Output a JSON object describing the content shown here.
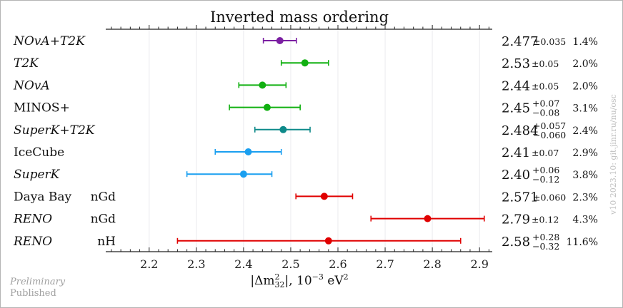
{
  "chart_data": {
    "type": "scatter",
    "subtype": "forest-plot-with-error-bars",
    "title": "Inverted mass ordering",
    "xlabel": "|Δm²₃₂|, 10⁻³ eV²",
    "xlabel_parts": {
      "pre": "|Δm",
      "sup": "2",
      "sub": "32",
      "mid": "|, 10",
      "exp": "−3",
      "unit": " eV",
      "unit_sup": "2"
    },
    "xlim": [
      2.108,
      2.927
    ],
    "xticks": [
      2.2,
      2.3,
      2.4,
      2.5,
      2.6,
      2.7,
      2.8,
      2.9
    ],
    "xtick_labels": [
      "2.2",
      "2.3",
      "2.4",
      "2.5",
      "2.6",
      "2.7",
      "2.8",
      "2.9"
    ],
    "minor_tick_step": 0.02,
    "grid": "vertical",
    "colors": {
      "combined": "#7b1fa2",
      "accelerator": "#11b011",
      "atm_accel": "#0e8a8a",
      "atmospheric": "#1a9ff0",
      "reactor": "#e00000"
    },
    "series": [
      {
        "name": "NOvA+T2K",
        "italic": true,
        "sub": "",
        "value": 2.477,
        "err_plus": 0.035,
        "err_minus": 0.035,
        "value_text": "2.477",
        "err_text": "±0.035",
        "err_plus_text": "",
        "err_minus_text": "",
        "pct": "1.4%",
        "color_key": "combined",
        "preliminary": true
      },
      {
        "name": "T2K",
        "italic": true,
        "sub": "",
        "value": 2.53,
        "err_plus": 0.05,
        "err_minus": 0.05,
        "value_text": "2.53",
        "err_text": "±0.05",
        "err_plus_text": "",
        "err_minus_text": "",
        "pct": "2.0%",
        "color_key": "accelerator",
        "preliminary": true
      },
      {
        "name": "NOvA",
        "italic": true,
        "sub": "",
        "value": 2.44,
        "err_plus": 0.05,
        "err_minus": 0.05,
        "value_text": "2.44",
        "err_text": "±0.05",
        "err_plus_text": "",
        "err_minus_text": "",
        "pct": "2.0%",
        "color_key": "accelerator",
        "preliminary": true
      },
      {
        "name": "MINOS+",
        "italic": false,
        "sub": "",
        "value": 2.45,
        "err_plus": 0.07,
        "err_minus": 0.08,
        "value_text": "2.45",
        "err_text": "",
        "err_plus_text": "+0.07",
        "err_minus_text": "−0.08",
        "pct": "3.1%",
        "color_key": "accelerator",
        "preliminary": false
      },
      {
        "name": "SuperK+T2K",
        "italic": true,
        "sub": "",
        "value": 2.484,
        "err_plus": 0.057,
        "err_minus": 0.06,
        "value_text": "2.484",
        "err_text": "",
        "err_plus_text": "+0.057",
        "err_minus_text": "−0.060",
        "pct": "2.4%",
        "color_key": "atm_accel",
        "preliminary": true
      },
      {
        "name": "IceCube",
        "italic": false,
        "sub": "",
        "value": 2.41,
        "err_plus": 0.07,
        "err_minus": 0.07,
        "value_text": "2.41",
        "err_text": "±0.07",
        "err_plus_text": "",
        "err_minus_text": "",
        "pct": "2.9%",
        "color_key": "atmospheric",
        "preliminary": false
      },
      {
        "name": "SuperK",
        "italic": true,
        "sub": "",
        "value": 2.4,
        "err_plus": 0.06,
        "err_minus": 0.12,
        "value_text": "2.40",
        "err_text": "",
        "err_plus_text": "+0.06",
        "err_minus_text": "−0.12",
        "pct": "3.8%",
        "color_key": "atmospheric",
        "preliminary": true
      },
      {
        "name": "Daya Bay",
        "italic": false,
        "sub": "nGd",
        "value": 2.571,
        "err_plus": 0.06,
        "err_minus": 0.06,
        "value_text": "2.571",
        "err_text": "±0.060",
        "err_plus_text": "",
        "err_minus_text": "",
        "pct": "2.3%",
        "color_key": "reactor",
        "preliminary": false
      },
      {
        "name": "RENO",
        "italic": true,
        "sub": "nGd",
        "value": 2.79,
        "err_plus": 0.12,
        "err_minus": 0.12,
        "value_text": "2.79",
        "err_text": "±0.12",
        "err_plus_text": "",
        "err_minus_text": "",
        "pct": "4.3%",
        "color_key": "reactor",
        "preliminary": true
      },
      {
        "name": "RENO",
        "italic": true,
        "sub": "nH",
        "value": 2.58,
        "err_plus": 0.28,
        "err_minus": 0.32,
        "value_text": "2.58",
        "err_text": "",
        "err_plus_text": "+0.28",
        "err_minus_text": "−0.32",
        "pct": "11.6%",
        "color_key": "reactor",
        "preliminary": true
      }
    ],
    "legend": {
      "preliminary": "Preliminary",
      "published": "Published",
      "placement": "bottom-left"
    },
    "watermark": "v10 2023.10:  git.jinr.ru/nu/osc"
  }
}
